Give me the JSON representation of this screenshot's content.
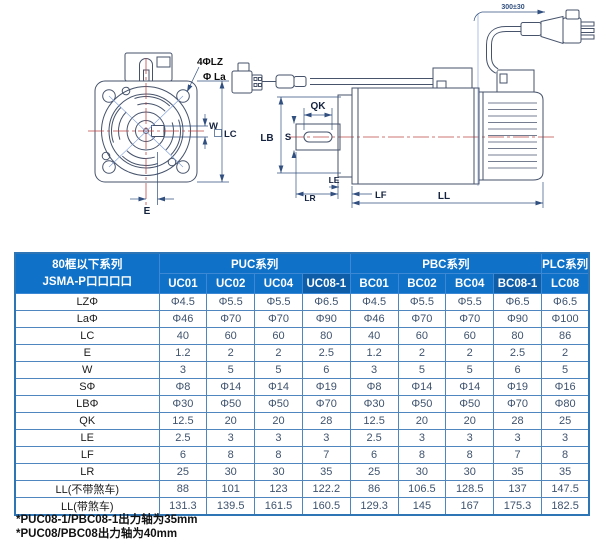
{
  "drawing": {
    "labels": {
      "lz_holes": "4ΦLZ",
      "la": "Φ La",
      "w": "W",
      "lc": "LC",
      "e": "E",
      "qk": "QK",
      "s": "S",
      "lb": "LB",
      "le": "LE",
      "lr": "LR",
      "lf": "LF",
      "ll": "LL",
      "cable_length": "300±30"
    }
  },
  "table": {
    "corner_header": {
      "line1": "80框以下系列",
      "line2": "JSMA-P口口口口"
    },
    "groups": [
      {
        "label": "PUC系列",
        "span": 4
      },
      {
        "label": "PBC系列",
        "span": 4
      },
      {
        "label": "PLC系列",
        "span": 1
      }
    ],
    "columns": [
      "UC01",
      "UC02",
      "UC04",
      "UC08-1",
      "BC01",
      "BC02",
      "BC04",
      "BC08-1",
      "LC08"
    ],
    "highlighted_columns": [
      "UC08-1",
      "BC08-1"
    ],
    "rows": [
      {
        "label": "LZΦ",
        "values": [
          "Φ4.5",
          "Φ5.5",
          "Φ5.5",
          "Φ6.5",
          "Φ4.5",
          "Φ5.5",
          "Φ5.5",
          "Φ6.5",
          "Φ6.5"
        ]
      },
      {
        "label": "LaΦ",
        "values": [
          "Φ46",
          "Φ70",
          "Φ70",
          "Φ90",
          "Φ46",
          "Φ70",
          "Φ70",
          "Φ90",
          "Φ100"
        ]
      },
      {
        "label": "LC",
        "values": [
          "40",
          "60",
          "60",
          "80",
          "40",
          "60",
          "60",
          "80",
          "86"
        ]
      },
      {
        "label": "E",
        "values": [
          "1.2",
          "2",
          "2",
          "2.5",
          "1.2",
          "2",
          "2",
          "2.5",
          "2"
        ]
      },
      {
        "label": "W",
        "values": [
          "3",
          "5",
          "5",
          "6",
          "3",
          "5",
          "5",
          "6",
          "5"
        ]
      },
      {
        "label": "SΦ",
        "values": [
          "Φ8",
          "Φ14",
          "Φ14",
          "Φ19",
          "Φ8",
          "Φ14",
          "Φ14",
          "Φ19",
          "Φ16"
        ]
      },
      {
        "label": "LBΦ",
        "values": [
          "Φ30",
          "Φ50",
          "Φ50",
          "Φ70",
          "Φ30",
          "Φ50",
          "Φ50",
          "Φ70",
          "Φ80"
        ]
      },
      {
        "label": "QK",
        "values": [
          "12.5",
          "20",
          "20",
          "28",
          "12.5",
          "20",
          "20",
          "28",
          "25"
        ]
      },
      {
        "label": "LE",
        "values": [
          "2.5",
          "3",
          "3",
          "3",
          "2.5",
          "3",
          "3",
          "3",
          "3"
        ]
      },
      {
        "label": "LF",
        "values": [
          "6",
          "8",
          "8",
          "7",
          "6",
          "8",
          "8",
          "7",
          "8"
        ]
      },
      {
        "label": "LR",
        "values": [
          "25",
          "30",
          "30",
          "35",
          "25",
          "30",
          "30",
          "35",
          "35"
        ]
      },
      {
        "label": "LL(不带煞车)",
        "values": [
          "88",
          "101",
          "123",
          "122.2",
          "86",
          "106.5",
          "128.5",
          "137",
          "147.5"
        ]
      },
      {
        "label": "LL(带煞车)",
        "values": [
          "131.3",
          "139.5",
          "161.5",
          "160.5",
          "129.3",
          "145",
          "167",
          "175.3",
          "182.5"
        ]
      }
    ]
  },
  "footnotes": [
    "*PUC08-1/PBC08-1出力轴为35mm",
    "*PUC08/PBC08出力轴为40mm"
  ],
  "colors": {
    "header_blue": "#0f72c8",
    "header_highlight": "#0d5da8",
    "table_border": "#2e75b6",
    "grid_line": "#4f86c0",
    "cell_text": "#3f536e",
    "drawing_line": "#46536b",
    "dimension_line": "#31507f",
    "centerline_red": "#c04848",
    "construction_blue": "#7a9ad8"
  }
}
